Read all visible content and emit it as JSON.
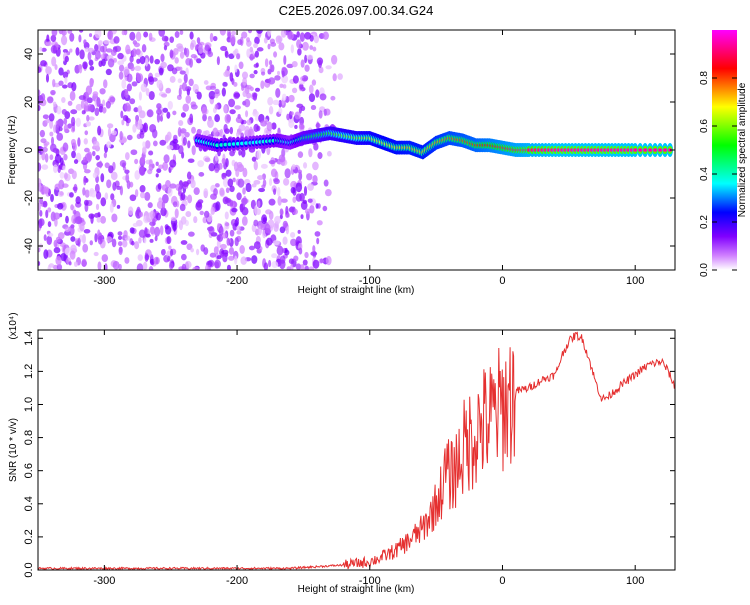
{
  "title": "C2E5.2026.097.00.34.G24",
  "chart_data": [
    {
      "type": "heatmap",
      "title": "C2E5.2026.097.00.34.G24",
      "xlabel": "Height of straight line (km)",
      "ylabel": "Frequency (Hz)",
      "xlim": [
        -350,
        130
      ],
      "ylim": [
        -50,
        50
      ],
      "x_ticks": [
        -300,
        -200,
        -100,
        0,
        100
      ],
      "x_tick_labels": [
        "-300",
        "-200",
        "-100",
        "0",
        "100"
      ],
      "y_ticks": [
        -40,
        -20,
        0,
        20,
        40
      ],
      "y_tick_labels": [
        "-40",
        "-20",
        "0",
        "20",
        "40"
      ],
      "colorbar": {
        "label": "Normalized spectral amplitude",
        "range": [
          0,
          1
        ],
        "ticks": [
          0.0,
          0.2,
          0.4,
          0.6,
          0.8
        ],
        "tick_labels": [
          "0.0",
          "0.2",
          "0.4",
          "0.6",
          "0.8"
        ],
        "colormap": [
          "#ffffff",
          "#8000ff",
          "#0000ff",
          "#00ffff",
          "#00ff00",
          "#ffff00",
          "#ff0000",
          "#ff00ff"
        ]
      },
      "noise_region": {
        "x_range": [
          -350,
          -120
        ],
        "freq_range": [
          -50,
          50
        ],
        "amplitude_range": [
          0.02,
          0.15
        ]
      },
      "signal_ridge": {
        "x": [
          -230,
          -215,
          -190,
          -170,
          -160,
          -150,
          -140,
          -130,
          -120,
          -110,
          -100,
          -90,
          -80,
          -70,
          -60,
          -50,
          -40,
          -30,
          -20,
          -10,
          0,
          10,
          20,
          40,
          60,
          80,
          100,
          130
        ],
        "freq": [
          4,
          2,
          3,
          4,
          3,
          5,
          6,
          7,
          6,
          5,
          5,
          3,
          1,
          1,
          -1,
          3,
          5,
          4,
          2,
          2,
          1,
          0,
          0,
          0,
          0,
          0,
          0,
          0
        ],
        "amplitude": [
          0.35,
          0.4,
          0.35,
          0.4,
          0.35,
          0.45,
          0.5,
          0.55,
          0.6,
          0.62,
          0.65,
          0.68,
          0.7,
          0.72,
          0.72,
          0.75,
          0.78,
          0.8,
          0.82,
          0.85,
          0.88,
          0.9,
          0.92,
          0.95,
          0.95,
          0.95,
          0.95,
          0.95
        ]
      }
    },
    {
      "type": "line",
      "xlabel": "Height of straight line (km)",
      "ylabel": "SNR (10 * v/v)",
      "y_multiplier_label": "(x10⁴)",
      "xlim": [
        -350,
        130
      ],
      "ylim": [
        0,
        1.45
      ],
      "x_ticks": [
        -300,
        -200,
        -100,
        0,
        100
      ],
      "x_tick_labels": [
        "-300",
        "-200",
        "-100",
        "0",
        "100"
      ],
      "y_ticks": [
        0.0,
        0.2,
        0.4,
        0.6,
        0.8,
        1.0,
        1.2,
        1.4
      ],
      "y_tick_labels": [
        "0.0",
        "0.2",
        "0.4",
        "0.6",
        "0.8",
        "1.0",
        "1.2",
        "1.4"
      ],
      "color": "#e53030",
      "series": [
        {
          "name": "SNR",
          "x": [
            -350,
            -300,
            -250,
            -200,
            -160,
            -120,
            -100,
            -90,
            -80,
            -70,
            -60,
            -55,
            -50,
            -45,
            -42,
            -40,
            -35,
            -30,
            -25,
            -20,
            -15,
            -10,
            -5,
            0,
            5,
            10,
            20,
            30,
            40,
            45,
            50,
            55,
            60,
            65,
            70,
            75,
            80,
            90,
            100,
            110,
            120,
            125,
            130
          ],
          "y": [
            0.01,
            0.01,
            0.01,
            0.01,
            0.01,
            0.03,
            0.05,
            0.08,
            0.12,
            0.18,
            0.25,
            0.32,
            0.4,
            0.5,
            0.62,
            0.55,
            0.62,
            0.72,
            0.78,
            0.84,
            0.88,
            0.9,
            0.95,
            0.98,
            1.03,
            1.08,
            1.1,
            1.15,
            1.18,
            1.3,
            1.38,
            1.42,
            1.4,
            1.28,
            1.14,
            1.03,
            1.05,
            1.12,
            1.18,
            1.24,
            1.26,
            1.2,
            1.1
          ]
        }
      ]
    }
  ]
}
